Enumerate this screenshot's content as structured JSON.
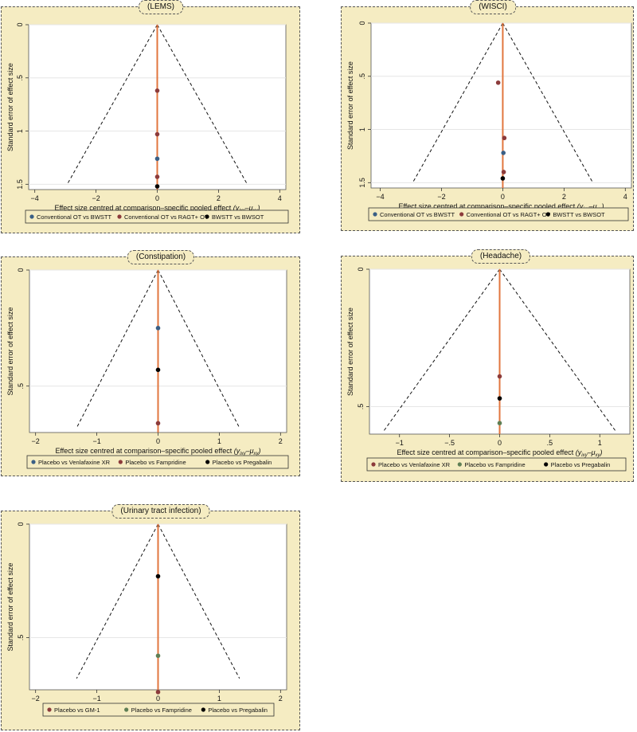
{
  "ylabel_common": "Standard error of effect size",
  "xlabel_main": "Effect size centred at comparison–specific pooled effect",
  "xlabel_sym": "(y",
  "xlabel_sub1": "ixy",
  "xlabel_mid": "–μ",
  "xlabel_sub2": "xy",
  "xlabel_end": ")",
  "chart_data": [
    {
      "type": "scatter",
      "title": "(LEMS)",
      "xlim": [
        -4.2,
        4.2
      ],
      "ylim": [
        1.55,
        0
      ],
      "xticks": [
        -4,
        -2,
        0,
        2,
        4
      ],
      "xtick_labels": [
        "−4",
        "−2",
        "0",
        "2",
        "4"
      ],
      "yticks": [
        0,
        0.5,
        1,
        1.5
      ],
      "ytick_labels": [
        "0",
        ".5",
        "1",
        "1.5"
      ],
      "funnel": {
        "apex": [
          0,
          0
        ],
        "ymax": 1.5,
        "xhalf": 2.94
      },
      "legend": [
        {
          "name": "Conventional OT vs BWSTT",
          "color": "#3a5f85"
        },
        {
          "name": "Conventional OT vs RAGT+ OT",
          "color": "#8c3b3b"
        },
        {
          "name": "BWSTT vs BWSOT",
          "color": "#000000"
        }
      ],
      "points": [
        {
          "x": 0,
          "y": 0.62,
          "color": "#8c3b3b"
        },
        {
          "x": 0,
          "y": 1.03,
          "color": "#8c3b3b"
        },
        {
          "x": 0,
          "y": 1.26,
          "color": "#3a5f85"
        },
        {
          "x": 0,
          "y": 1.43,
          "color": "#8c3b3b"
        },
        {
          "x": 0,
          "y": 1.52,
          "color": "#000000"
        }
      ]
    },
    {
      "type": "scatter",
      "title": "(WISCI)",
      "xlim": [
        -4.3,
        4.2
      ],
      "ylim": [
        1.55,
        0
      ],
      "xticks": [
        -4,
        -2,
        0,
        2,
        4
      ],
      "xtick_labels": [
        "−4",
        "−2",
        "0",
        "2",
        "4"
      ],
      "yticks": [
        0,
        0.5,
        1,
        1.5
      ],
      "ytick_labels": [
        "0",
        ".5",
        "1",
        "1.5"
      ],
      "funnel": {
        "apex": [
          0,
          0
        ],
        "ymax": 1.5,
        "xhalf": 2.94
      },
      "legend": [
        {
          "name": "Conventional OT vs BWSTT",
          "color": "#3a5f85"
        },
        {
          "name": "Conventional OT vs RAGT+ OT",
          "color": "#8c3b3b"
        },
        {
          "name": "BWSTT vs BWSOT",
          "color": "#000000"
        }
      ],
      "points": [
        {
          "x": -0.15,
          "y": 0.56,
          "color": "#8c3b3b"
        },
        {
          "x": 0.05,
          "y": 1.08,
          "color": "#8c3b3b"
        },
        {
          "x": 0.02,
          "y": 1.22,
          "color": "#3a5f85"
        },
        {
          "x": 0.03,
          "y": 1.4,
          "color": "#8c3b3b"
        },
        {
          "x": 0.0,
          "y": 1.46,
          "color": "#000000"
        }
      ]
    },
    {
      "type": "scatter",
      "title": "(Constipation)",
      "xlim": [
        -2.1,
        2.1
      ],
      "ylim": [
        0.7,
        0
      ],
      "xticks": [
        -2,
        -1,
        0,
        1,
        2
      ],
      "xtick_labels": [
        "−2",
        "−1",
        "0",
        "1",
        "2"
      ],
      "yticks": [
        0,
        0.5
      ],
      "ytick_labels": [
        "0",
        ".5"
      ],
      "funnel": {
        "apex": [
          0,
          0
        ],
        "ymax": 0.68,
        "xhalf": 1.33
      },
      "legend": [
        {
          "name": "Placebo vs Venlafaxine XR",
          "color": "#3a5f85"
        },
        {
          "name": "Placebo vs Fampridine",
          "color": "#8c3b3b"
        },
        {
          "name": "Placebo vs Pregabalin",
          "color": "#000000"
        }
      ],
      "points": [
        {
          "x": 0,
          "y": 0.25,
          "color": "#3a5f85"
        },
        {
          "x": 0,
          "y": 0.43,
          "color": "#000000"
        },
        {
          "x": 0,
          "y": 0.66,
          "color": "#8c3b3b"
        }
      ]
    },
    {
      "type": "scatter",
      "title": "(Headache)",
      "xlim": [
        -1.3,
        1.3
      ],
      "ylim": [
        0.6,
        0
      ],
      "xticks": [
        -1,
        -0.5,
        0,
        0.5,
        1
      ],
      "xtick_labels": [
        "−1",
        "−.5",
        "0",
        ".5",
        "1"
      ],
      "yticks": [
        0,
        0.5
      ],
      "ytick_labels": [
        "0",
        ".5"
      ],
      "funnel": {
        "apex": [
          0,
          0
        ],
        "ymax": 0.59,
        "xhalf": 1.16
      },
      "legend": [
        {
          "name": "Placebo vs Venlafaxine XR",
          "color": "#8c3b3b"
        },
        {
          "name": "Placebo vs Fampridine",
          "color": "#5f7f55"
        },
        {
          "name": "Placebo vs Pregabalin",
          "color": "#000000"
        }
      ],
      "points": [
        {
          "x": 0,
          "y": 0.39,
          "color": "#8c3b3b"
        },
        {
          "x": 0,
          "y": 0.47,
          "color": "#000000"
        },
        {
          "x": 0,
          "y": 0.56,
          "color": "#5f7f55"
        }
      ]
    },
    {
      "type": "scatter",
      "title": "(Urinary tract infection)",
      "xlim": [
        -2.1,
        2.1
      ],
      "ylim": [
        0.73,
        0
      ],
      "xticks": [
        -2,
        -1,
        0,
        1,
        2
      ],
      "xtick_labels": [
        "−2",
        "−1",
        "0",
        "1",
        "2"
      ],
      "yticks": [
        0,
        0.5
      ],
      "ytick_labels": [
        "0",
        ".5"
      ],
      "funnel": {
        "apex": [
          0,
          0
        ],
        "ymax": 0.68,
        "xhalf": 1.33
      },
      "legend": [
        {
          "name": "Placebo vs GM-1",
          "color": "#8c3b3b"
        },
        {
          "name": "Placebo vs Fampridine",
          "color": "#5f7f55"
        },
        {
          "name": "Placebo vs Pregabalin",
          "color": "#000000"
        }
      ],
      "points": [
        {
          "x": 0,
          "y": 0.23,
          "color": "#000000"
        },
        {
          "x": 0,
          "y": 0.58,
          "color": "#5f7f55"
        },
        {
          "x": 0,
          "y": 0.74,
          "color": "#8c3b3b"
        }
      ]
    }
  ]
}
